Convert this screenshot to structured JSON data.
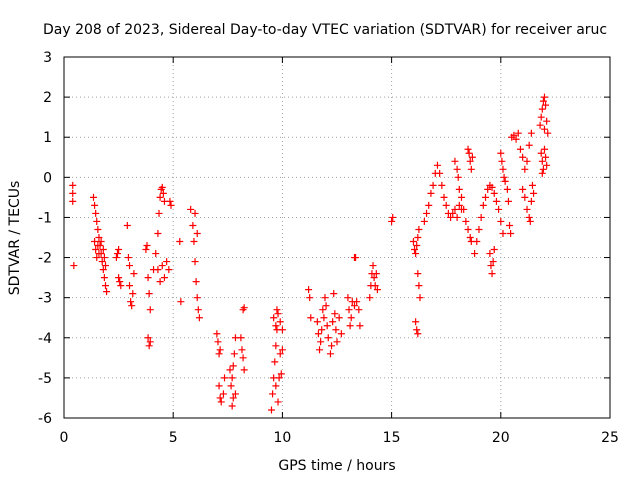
{
  "chart_data": {
    "type": "scatter",
    "title": "Day 208 of 2023, Sidereal Day-to-day VTEC variation (SDTVAR) for receiver aruc",
    "xlabel": "GPS time / hours",
    "ylabel": "SDTVAR / TECUs",
    "xlim": [
      0,
      25
    ],
    "ylim": [
      -6,
      3
    ],
    "x_ticks": [
      "0",
      "5",
      "10",
      "15",
      "20",
      "25"
    ],
    "y_ticks": [
      "3",
      "2",
      "1",
      "0",
      "-1",
      "-2",
      "-3",
      "-4",
      "-5",
      "-6"
    ],
    "x_tick_values": [
      0,
      5,
      10,
      15,
      20,
      25
    ],
    "y_tick_values": [
      3,
      2,
      1,
      0,
      -1,
      -2,
      -3,
      -4,
      -5,
      -6
    ],
    "grid": true,
    "marker": "plus",
    "colors": {
      "series": "#ff0000",
      "grid": "#a0a0a0",
      "axes": "#000000"
    },
    "series": [
      {
        "name": "SDTVAR",
        "points": [
          [
            0.4,
            -0.2
          ],
          [
            0.4,
            -0.4
          ],
          [
            0.4,
            -0.6
          ],
          [
            0.45,
            -2.2
          ],
          [
            1.35,
            -0.5
          ],
          [
            1.4,
            -0.7
          ],
          [
            1.45,
            -0.9
          ],
          [
            1.5,
            -1.1
          ],
          [
            1.55,
            -1.3
          ],
          [
            1.6,
            -1.5
          ],
          [
            1.65,
            -1.7
          ],
          [
            1.7,
            -1.9
          ],
          [
            1.75,
            -2.1
          ],
          [
            1.8,
            -2.3
          ],
          [
            1.85,
            -2.5
          ],
          [
            1.9,
            -2.7
          ],
          [
            1.95,
            -2.85
          ],
          [
            1.4,
            -1.6
          ],
          [
            1.45,
            -1.8
          ],
          [
            1.5,
            -2.0
          ],
          [
            1.55,
            -1.7
          ],
          [
            1.6,
            -1.9
          ],
          [
            1.7,
            -1.6
          ],
          [
            1.8,
            -1.8
          ],
          [
            1.85,
            -2.0
          ],
          [
            1.9,
            -2.2
          ],
          [
            2.4,
            -2.0
          ],
          [
            2.45,
            -1.9
          ],
          [
            2.5,
            -2.5
          ],
          [
            2.55,
            -2.6
          ],
          [
            2.6,
            -2.7
          ],
          [
            2.5,
            -1.8
          ],
          [
            2.9,
            -1.2
          ],
          [
            2.95,
            -2.0
          ],
          [
            3.0,
            -2.2
          ],
          [
            3.0,
            -2.7
          ],
          [
            3.05,
            -3.1
          ],
          [
            3.1,
            -3.2
          ],
          [
            3.15,
            -2.9
          ],
          [
            3.2,
            -2.4
          ],
          [
            3.75,
            -1.8
          ],
          [
            3.8,
            -1.7
          ],
          [
            3.85,
            -2.5
          ],
          [
            3.9,
            -2.9
          ],
          [
            3.95,
            -3.3
          ],
          [
            3.85,
            -4.0
          ],
          [
            3.9,
            -4.2
          ],
          [
            3.95,
            -4.1
          ],
          [
            4.1,
            -2.3
          ],
          [
            4.2,
            -1.9
          ],
          [
            4.3,
            -1.4
          ],
          [
            4.35,
            -0.9
          ],
          [
            4.4,
            -0.5
          ],
          [
            4.45,
            -0.3
          ],
          [
            4.5,
            -0.25
          ],
          [
            4.55,
            -0.4
          ],
          [
            4.6,
            -0.6
          ],
          [
            4.3,
            -2.3
          ],
          [
            4.4,
            -2.6
          ],
          [
            4.5,
            -2.2
          ],
          [
            4.6,
            -2.5
          ],
          [
            4.7,
            -2.1
          ],
          [
            4.8,
            -2.3
          ],
          [
            4.85,
            -0.6
          ],
          [
            4.9,
            -0.7
          ],
          [
            5.3,
            -1.6
          ],
          [
            5.35,
            -3.1
          ],
          [
            5.8,
            -0.8
          ],
          [
            5.9,
            -1.2
          ],
          [
            5.95,
            -1.6
          ],
          [
            6.0,
            -2.1
          ],
          [
            6.05,
            -2.6
          ],
          [
            6.1,
            -3.0
          ],
          [
            6.15,
            -3.3
          ],
          [
            6.2,
            -3.5
          ],
          [
            6.0,
            -0.9
          ],
          [
            6.1,
            -1.4
          ],
          [
            7.0,
            -3.9
          ],
          [
            7.05,
            -4.1
          ],
          [
            7.1,
            -4.4
          ],
          [
            7.15,
            -4.3
          ],
          [
            7.1,
            -5.2
          ],
          [
            7.15,
            -5.5
          ],
          [
            7.2,
            -5.6
          ],
          [
            7.3,
            -5.4
          ],
          [
            7.35,
            -5.0
          ],
          [
            7.6,
            -4.8
          ],
          [
            7.65,
            -5.2
          ],
          [
            7.7,
            -5.0
          ],
          [
            7.75,
            -4.7
          ],
          [
            7.8,
            -4.4
          ],
          [
            7.85,
            -4.0
          ],
          [
            7.7,
            -5.7
          ],
          [
            7.75,
            -5.5
          ],
          [
            7.85,
            -5.4
          ],
          [
            8.1,
            -4.0
          ],
          [
            8.15,
            -4.3
          ],
          [
            8.2,
            -4.5
          ],
          [
            8.25,
            -4.8
          ],
          [
            8.2,
            -3.3
          ],
          [
            8.25,
            -3.25
          ],
          [
            9.5,
            -5.8
          ],
          [
            9.55,
            -5.4
          ],
          [
            9.6,
            -5.0
          ],
          [
            9.65,
            -4.6
          ],
          [
            9.7,
            -4.2
          ],
          [
            9.75,
            -3.8
          ],
          [
            9.8,
            -3.4
          ],
          [
            9.7,
            -5.2
          ],
          [
            9.8,
            -5.6
          ],
          [
            9.85,
            -5.0
          ],
          [
            9.9,
            -4.4
          ],
          [
            9.95,
            -4.9
          ],
          [
            10.0,
            -4.3
          ],
          [
            9.6,
            -3.5
          ],
          [
            9.7,
            -3.7
          ],
          [
            9.75,
            -3.3
          ],
          [
            9.9,
            -3.6
          ],
          [
            10.0,
            -3.8
          ],
          [
            11.2,
            -2.8
          ],
          [
            11.25,
            -3.0
          ],
          [
            11.3,
            -3.5
          ],
          [
            11.6,
            -3.6
          ],
          [
            11.65,
            -3.9
          ],
          [
            11.7,
            -4.3
          ],
          [
            11.75,
            -4.1
          ],
          [
            11.8,
            -3.8
          ],
          [
            11.85,
            -3.3
          ],
          [
            11.9,
            -3.5
          ],
          [
            11.95,
            -3.0
          ],
          [
            12.0,
            -3.2
          ],
          [
            12.05,
            -3.7
          ],
          [
            12.1,
            -4.0
          ],
          [
            12.2,
            -4.4
          ],
          [
            12.25,
            -4.2
          ],
          [
            12.3,
            -3.6
          ],
          [
            12.35,
            -2.9
          ],
          [
            12.4,
            -3.4
          ],
          [
            12.45,
            -3.8
          ],
          [
            12.5,
            -4.1
          ],
          [
            12.6,
            -3.5
          ],
          [
            12.7,
            -3.9
          ],
          [
            13.0,
            -3.0
          ],
          [
            13.05,
            -3.3
          ],
          [
            13.1,
            -3.7
          ],
          [
            13.15,
            -3.5
          ],
          [
            13.2,
            -3.1
          ],
          [
            13.3,
            -3.2
          ],
          [
            13.4,
            -3.1
          ],
          [
            13.5,
            -3.3
          ],
          [
            13.55,
            -3.7
          ],
          [
            13.3,
            -2.0
          ],
          [
            13.35,
            -2.0
          ],
          [
            14.0,
            -3.0
          ],
          [
            14.05,
            -2.7
          ],
          [
            14.1,
            -2.4
          ],
          [
            14.15,
            -2.2
          ],
          [
            14.2,
            -2.5
          ],
          [
            14.25,
            -2.7
          ],
          [
            14.3,
            -2.4
          ],
          [
            14.35,
            -2.8
          ],
          [
            15.0,
            -1.1
          ],
          [
            15.05,
            -1.0
          ],
          [
            16.0,
            -1.6
          ],
          [
            16.05,
            -1.8
          ],
          [
            16.1,
            -1.9
          ],
          [
            16.15,
            -1.7
          ],
          [
            16.2,
            -1.5
          ],
          [
            16.25,
            -1.3
          ],
          [
            16.1,
            -3.6
          ],
          [
            16.15,
            -3.8
          ],
          [
            16.2,
            -3.9
          ],
          [
            16.2,
            -2.4
          ],
          [
            16.25,
            -2.7
          ],
          [
            16.3,
            -3.0
          ],
          [
            16.5,
            -1.1
          ],
          [
            16.6,
            -0.9
          ],
          [
            16.7,
            -0.7
          ],
          [
            16.8,
            -0.4
          ],
          [
            16.9,
            -0.2
          ],
          [
            17.0,
            0.1
          ],
          [
            17.1,
            0.3
          ],
          [
            17.2,
            0.1
          ],
          [
            17.3,
            -0.2
          ],
          [
            17.4,
            -0.5
          ],
          [
            17.5,
            -0.7
          ],
          [
            17.6,
            -0.9
          ],
          [
            17.7,
            -1.0
          ],
          [
            17.8,
            -0.9
          ],
          [
            17.9,
            -0.8
          ],
          [
            18.0,
            -1.0
          ],
          [
            18.1,
            -0.7
          ],
          [
            18.2,
            -0.8
          ],
          [
            17.9,
            0.4
          ],
          [
            18.0,
            0.2
          ],
          [
            18.05,
            0.0
          ],
          [
            18.1,
            -0.3
          ],
          [
            18.2,
            -0.5
          ],
          [
            18.3,
            -0.8
          ],
          [
            18.4,
            -1.1
          ],
          [
            18.5,
            -1.3
          ],
          [
            18.6,
            -1.5
          ],
          [
            18.65,
            -1.6
          ],
          [
            18.5,
            0.7
          ],
          [
            18.55,
            0.6
          ],
          [
            18.6,
            0.4
          ],
          [
            18.65,
            0.2
          ],
          [
            18.7,
            0.5
          ],
          [
            18.8,
            -1.9
          ],
          [
            18.9,
            -1.6
          ],
          [
            19.0,
            -1.3
          ],
          [
            19.1,
            -1.0
          ],
          [
            19.2,
            -0.7
          ],
          [
            19.3,
            -0.5
          ],
          [
            19.4,
            -0.3
          ],
          [
            19.5,
            -0.2
          ],
          [
            19.6,
            -0.25
          ],
          [
            19.7,
            -0.4
          ],
          [
            19.8,
            -0.6
          ],
          [
            19.9,
            -0.8
          ],
          [
            20.0,
            -1.1
          ],
          [
            20.1,
            -1.4
          ],
          [
            19.5,
            -1.9
          ],
          [
            19.55,
            -2.2
          ],
          [
            19.6,
            -2.4
          ],
          [
            19.65,
            -2.1
          ],
          [
            19.7,
            -1.8
          ],
          [
            20.0,
            0.6
          ],
          [
            20.05,
            0.4
          ],
          [
            20.1,
            0.2
          ],
          [
            20.15,
            0.0
          ],
          [
            20.2,
            -0.1
          ],
          [
            20.3,
            -0.3
          ],
          [
            20.35,
            -0.6
          ],
          [
            20.4,
            -1.2
          ],
          [
            20.45,
            -1.4
          ],
          [
            20.5,
            1.0
          ],
          [
            20.6,
            1.05
          ],
          [
            20.7,
            0.95
          ],
          [
            20.8,
            1.1
          ],
          [
            20.9,
            0.7
          ],
          [
            21.0,
            0.5
          ],
          [
            21.1,
            0.2
          ],
          [
            21.2,
            0.4
          ],
          [
            21.3,
            0.8
          ],
          [
            21.4,
            1.1
          ],
          [
            21.0,
            -0.3
          ],
          [
            21.1,
            -0.5
          ],
          [
            21.2,
            -0.8
          ],
          [
            21.3,
            -1.0
          ],
          [
            21.35,
            -1.1
          ],
          [
            21.4,
            -0.6
          ],
          [
            21.45,
            -0.2
          ],
          [
            21.5,
            -0.4
          ],
          [
            21.8,
            1.3
          ],
          [
            21.85,
            1.5
          ],
          [
            21.9,
            1.7
          ],
          [
            21.95,
            1.9
          ],
          [
            22.0,
            2.0
          ],
          [
            22.05,
            1.8
          ],
          [
            22.1,
            1.4
          ],
          [
            22.15,
            1.1
          ],
          [
            21.85,
            0.6
          ],
          [
            21.9,
            0.4
          ],
          [
            21.95,
            0.2
          ],
          [
            22.0,
            0.7
          ],
          [
            22.05,
            0.5
          ],
          [
            22.1,
            0.3
          ],
          [
            21.9,
            0.1
          ],
          [
            22.0,
            1.2
          ]
        ]
      }
    ]
  }
}
